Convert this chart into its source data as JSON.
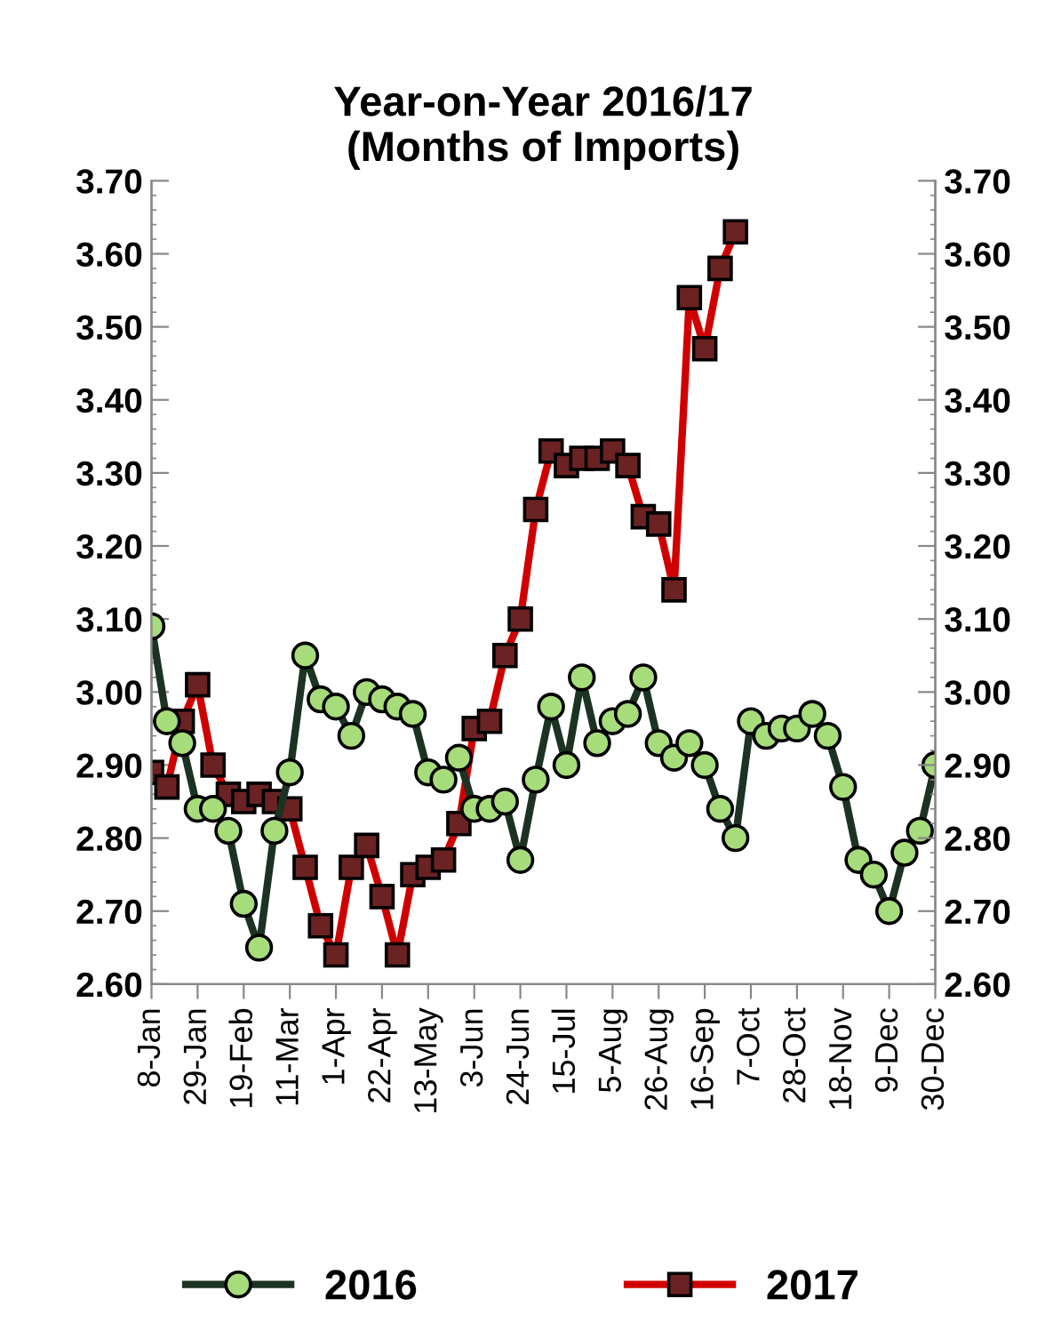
{
  "chart_data": {
    "type": "line",
    "title": "Year-on-Year 2016/17\n(Months of Imports)",
    "categories": [
      "8-Jan",
      null,
      null,
      "29-Jan",
      null,
      null,
      "19-Feb",
      null,
      null,
      "11-Mar",
      null,
      null,
      "1-Apr",
      null,
      null,
      "22-Apr",
      null,
      null,
      "13-May",
      null,
      null,
      "3-Jun",
      null,
      null,
      "24-Jun",
      null,
      null,
      "15-Jul",
      null,
      null,
      "5-Aug",
      null,
      null,
      "26-Aug",
      null,
      null,
      "16-Sep",
      null,
      null,
      "7-Oct",
      null,
      null,
      "28-Oct",
      null,
      null,
      "18-Nov",
      null,
      null,
      "9-Dec",
      null,
      null,
      "30-Dec"
    ],
    "series": [
      {
        "name": "2016",
        "color": "#1c3322",
        "marker": "circle",
        "values": [
          3.09,
          2.96,
          2.93,
          2.84,
          2.84,
          2.81,
          2.71,
          2.65,
          2.81,
          2.89,
          3.05,
          2.99,
          2.98,
          2.94,
          3.0,
          2.99,
          2.98,
          2.97,
          2.89,
          2.88,
          2.91,
          2.84,
          2.84,
          2.85,
          2.77,
          2.88,
          2.98,
          2.9,
          3.02,
          2.93,
          2.96,
          2.97,
          3.02,
          2.93,
          2.91,
          2.93,
          2.9,
          2.84,
          2.8,
          2.96,
          2.94,
          2.95,
          2.95,
          2.97,
          2.94,
          2.87,
          2.77,
          2.75,
          2.7,
          2.78,
          2.81,
          2.9
        ]
      },
      {
        "name": "2017",
        "color": "#d00000",
        "marker": "square",
        "values": [
          2.89,
          2.87,
          2.96,
          3.01,
          2.9,
          2.86,
          2.85,
          2.86,
          2.85,
          2.84,
          2.76,
          2.68,
          2.64,
          2.76,
          2.79,
          2.72,
          2.64,
          2.75,
          2.76,
          2.77,
          2.82,
          2.95,
          2.96,
          3.05,
          3.1,
          3.25,
          3.33,
          3.31,
          3.32,
          3.32,
          3.33,
          3.31,
          3.24,
          3.23,
          3.14,
          3.54,
          3.47,
          3.58,
          3.63,
          null,
          null,
          null,
          null,
          null,
          null,
          null,
          null,
          null,
          null,
          null,
          null,
          null
        ]
      }
    ],
    "ylim": [
      2.6,
      3.7
    ],
    "yticks": [
      {
        "value": 2.6,
        "label": "2.60"
      },
      {
        "value": 2.7,
        "label": "2.70"
      },
      {
        "value": 2.8,
        "label": "2.80"
      },
      {
        "value": 2.9,
        "label": "2.90"
      },
      {
        "value": 3.0,
        "label": "3.00"
      },
      {
        "value": 3.1,
        "label": "3.10"
      },
      {
        "value": 3.2,
        "label": "3.20"
      },
      {
        "value": 3.3,
        "label": "3.30"
      },
      {
        "value": 3.4,
        "label": "3.40"
      },
      {
        "value": 3.5,
        "label": "3.50"
      },
      {
        "value": 3.6,
        "label": "3.60"
      },
      {
        "value": 3.7,
        "label": "3.70"
      }
    ],
    "y2lim": [
      2.6,
      3.7
    ],
    "y2ticks": [
      {
        "value": 2.6,
        "label": "2.60"
      },
      {
        "value": 2.7,
        "label": "2.70"
      },
      {
        "value": 2.8,
        "label": "2.80"
      },
      {
        "value": 2.9,
        "label": "2.90"
      },
      {
        "value": 3.0,
        "label": "3.00"
      },
      {
        "value": 3.1,
        "label": "3.10"
      },
      {
        "value": 3.2,
        "label": "3.20"
      },
      {
        "value": 3.3,
        "label": "3.30"
      },
      {
        "value": 3.4,
        "label": "3.40"
      },
      {
        "value": 3.5,
        "label": "3.50"
      },
      {
        "value": 3.6,
        "label": "3.60"
      },
      {
        "value": 3.7,
        "label": "3.70"
      }
    ],
    "grid": false,
    "legend": "bottom",
    "line_style": "solid"
  }
}
